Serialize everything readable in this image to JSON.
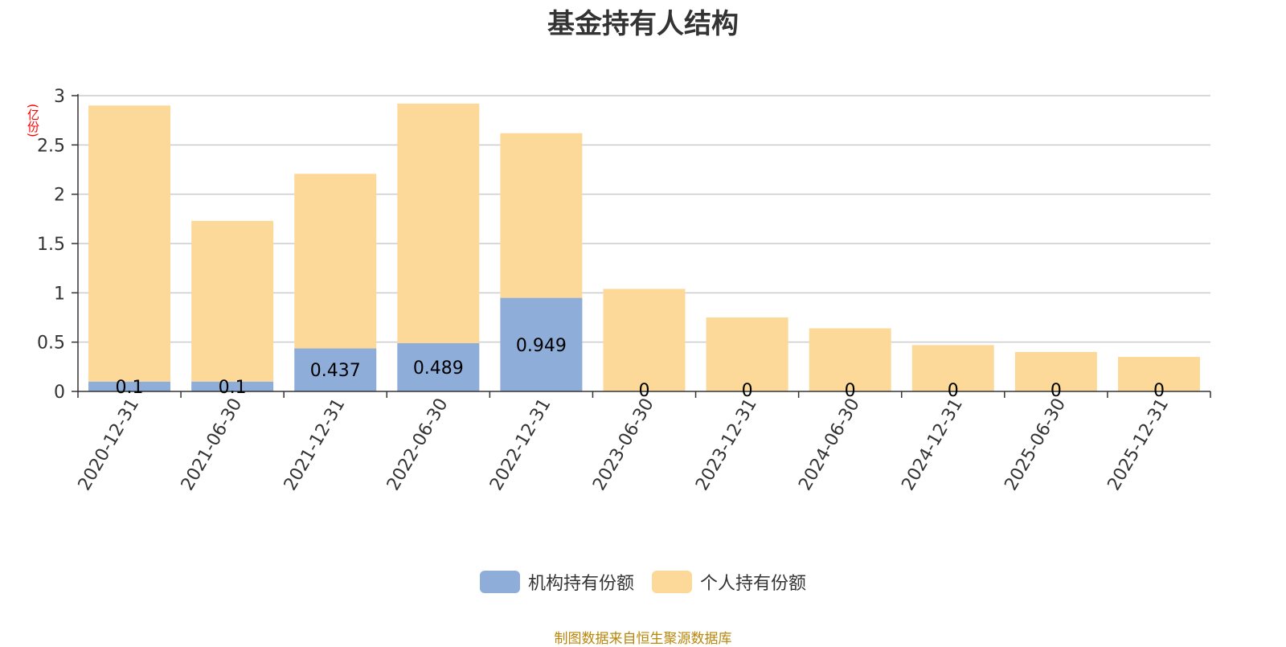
{
  "chart_data": {
    "type": "bar",
    "stacked": true,
    "title": "基金持有人结构",
    "ylabel": "(亿份)",
    "ylim": [
      0,
      3
    ],
    "y_ticks": [
      "0",
      "0.5",
      "1",
      "1.5",
      "2",
      "2.5",
      "3"
    ],
    "grid": true,
    "legend_placement": "bottom",
    "categories": [
      "2020-12-31",
      "2021-06-30",
      "2021-12-31",
      "2022-06-30",
      "2022-12-31",
      "2023-06-30",
      "2023-12-31",
      "2024-06-30",
      "2024-12-31",
      "2025-06-30",
      "2025-12-31"
    ],
    "series": [
      {
        "name": "机构持有份额",
        "color": "#8eadd9",
        "values": [
          0.1,
          0.1,
          0.437,
          0.489,
          0.949,
          0,
          0,
          0,
          0,
          0,
          0
        ],
        "labels": [
          "0.1",
          "0.1",
          "0.437",
          "0.489",
          "0.949",
          "0",
          "0",
          "0",
          "0",
          "0",
          "0"
        ]
      },
      {
        "name": "个人持有份额",
        "color": "#fdd999",
        "values": [
          2.8,
          1.63,
          1.77,
          2.43,
          1.67,
          1.04,
          0.75,
          0.64,
          0.47,
          0.4,
          0.35
        ]
      }
    ]
  },
  "source_note": "制图数据来自恒生聚源数据库"
}
